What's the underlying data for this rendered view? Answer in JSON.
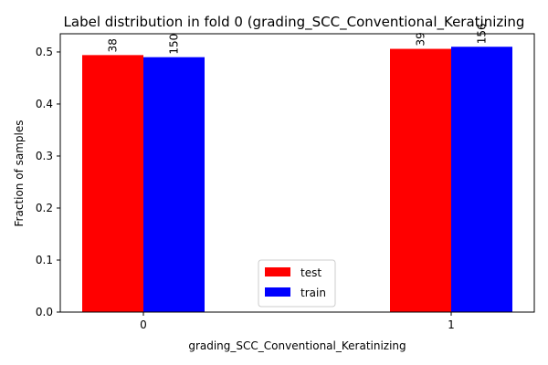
{
  "chart_data": {
    "type": "bar",
    "title": "Label distribution in fold 0 (grading_SCC_Conventional_Keratinizing",
    "xlabel": "grading_SCC_Conventional_Keratinizing",
    "ylabel": "Fraction of samples",
    "categories": [
      "0",
      "1"
    ],
    "ylim": [
      0,
      0.535
    ],
    "yticks": [
      "0.0",
      "0.1",
      "0.2",
      "0.3",
      "0.4",
      "0.5"
    ],
    "series": [
      {
        "name": "test",
        "color": "#ff0000",
        "values": [
          0.494,
          0.506
        ],
        "labels": [
          "38",
          "39"
        ]
      },
      {
        "name": "train",
        "color": "#0000ff",
        "values": [
          0.49,
          0.51
        ],
        "labels": [
          "150",
          "156"
        ]
      }
    ],
    "legend_position": "lower center",
    "grid": false
  }
}
